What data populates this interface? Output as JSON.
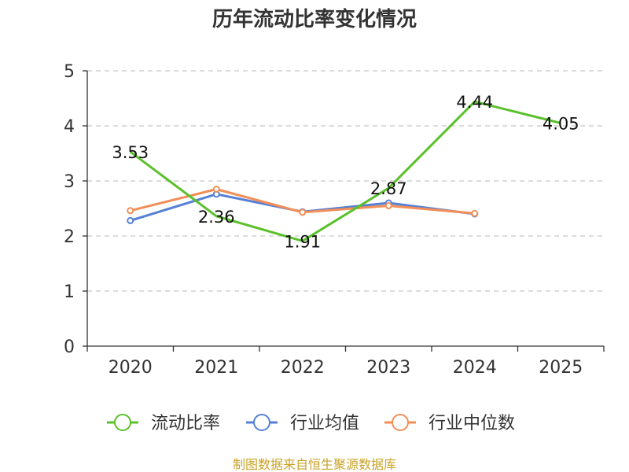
{
  "chart_data": {
    "type": "line",
    "title": "历年流动比率变化情况",
    "categories": [
      "2020",
      "2021",
      "2022",
      "2023",
      "2024",
      "2025"
    ],
    "ylim": [
      0,
      5
    ],
    "yticks": [
      "0",
      "1",
      "2",
      "3",
      "4",
      "5"
    ],
    "grid": true,
    "legend_position": "bottom",
    "series": [
      {
        "name": "流动比率",
        "color": "#5ac02b",
        "values": [
          3.53,
          2.36,
          1.91,
          2.87,
          4.44,
          4.05
        ],
        "labels": [
          "3.53",
          "2.36",
          "1.91",
          "2.87",
          "4.44",
          "4.05"
        ]
      },
      {
        "name": "行业均值",
        "color": "#5580d6",
        "values": [
          2.28,
          2.76,
          2.44,
          2.6,
          2.4,
          null
        ]
      },
      {
        "name": "行业中位数",
        "color": "#f28e57",
        "values": [
          2.46,
          2.85,
          2.43,
          2.55,
          2.41,
          null
        ]
      }
    ],
    "source": "制图数据来自恒生聚源数据库"
  }
}
